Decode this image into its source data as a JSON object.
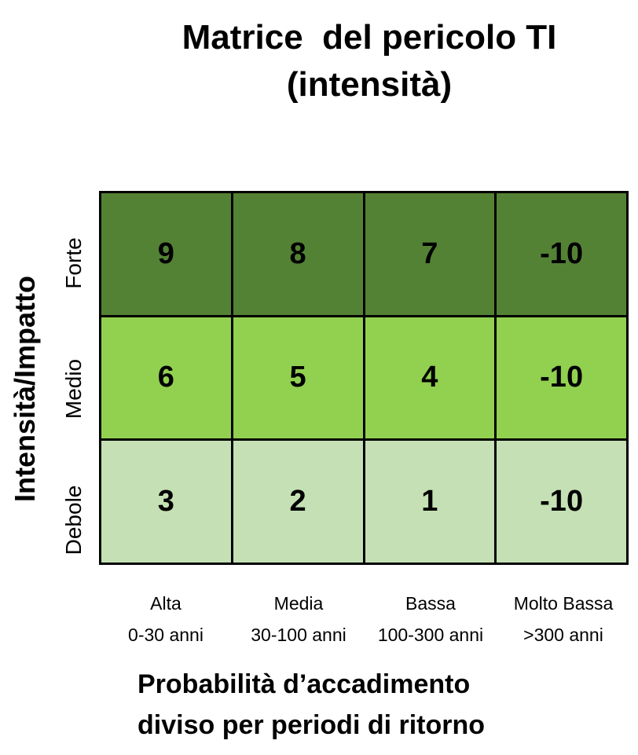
{
  "title": {
    "line1": "Matrice  del pericolo TI",
    "line2": "(intensità)"
  },
  "y_axis": {
    "title": "Intensità/Impatto",
    "rows": [
      "Forte",
      "Medio",
      "Debole"
    ]
  },
  "x_axis": {
    "title_line1": "Probabilità d’accadimento",
    "title_line2": "diviso per periodi di ritorno",
    "columns": [
      {
        "name": "Alta",
        "range": "0-30 anni"
      },
      {
        "name": "Media",
        "range": "30-100 anni"
      },
      {
        "name": "Bassa",
        "range": "100-300 anni"
      },
      {
        "name": "Molto Bassa",
        "range": ">300 anni"
      }
    ]
  },
  "matrix": {
    "values": [
      [
        "9",
        "8",
        "7",
        "-10"
      ],
      [
        "6",
        "5",
        "4",
        "-10"
      ],
      [
        "3",
        "2",
        "1",
        "-10"
      ]
    ],
    "row_colors": [
      "#548235",
      "#92d050",
      "#c5e0b4"
    ]
  }
}
